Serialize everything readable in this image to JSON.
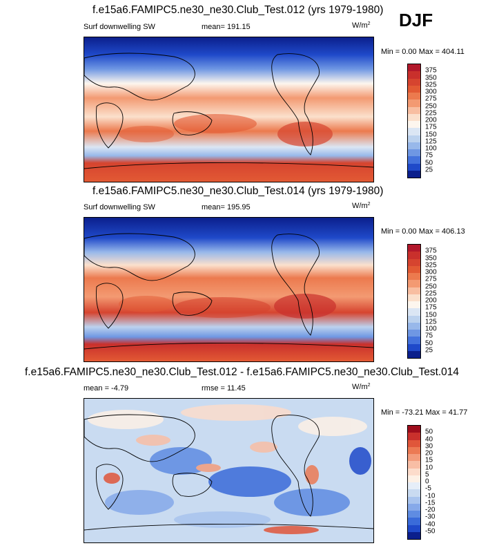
{
  "season": "DJF",
  "panels": [
    {
      "title": "f.e15a6.FAMIPC5.ne30_ne30.Club_Test.012 (yrs 1979-1980)",
      "variable": "Surf downwelling SW",
      "stat": "mean=  191.15",
      "unit": "W/m",
      "unit_exp": "2",
      "minmax": "Min =   0.00 Max = 404.11",
      "type": "field",
      "colorbar": {
        "labels": [
          "375",
          "350",
          "325",
          "300",
          "275",
          "250",
          "225",
          "200",
          "175",
          "150",
          "125",
          "100",
          "75",
          "50",
          "25"
        ]
      }
    },
    {
      "title": "f.e15a6.FAMIPC5.ne30_ne30.Club_Test.014 (yrs 1979-1980)",
      "variable": "Surf downwelling SW",
      "stat": "mean=  195.95",
      "unit": "W/m",
      "unit_exp": "2",
      "minmax": "Min =   0.00 Max = 406.13",
      "type": "field",
      "colorbar": {
        "labels": [
          "375",
          "350",
          "325",
          "300",
          "275",
          "250",
          "225",
          "200",
          "175",
          "150",
          "125",
          "100",
          "75",
          "50",
          "25"
        ]
      }
    },
    {
      "title": "f.e15a6.FAMIPC5.ne30_ne30.Club_Test.012 - f.e15a6.FAMIPC5.ne30_ne30.Club_Test.014",
      "variable": "mean =   -4.79",
      "stat": "rmse =  11.45",
      "unit": "W/m",
      "unit_exp": "2",
      "minmax": "Min = -73.21 Max =  41.77",
      "type": "diff",
      "colorbar": {
        "labels": [
          "50",
          "40",
          "30",
          "20",
          "15",
          "10",
          "5",
          "0",
          "-5",
          "-10",
          "-15",
          "-20",
          "-30",
          "-40",
          "-50"
        ]
      }
    }
  ],
  "colors": {
    "field": [
      "#b2182b",
      "#c9302c",
      "#d6442f",
      "#e25a34",
      "#ec7a4e",
      "#f39a72",
      "#f8bea1",
      "#fbe0cc",
      "#fdf6ee",
      "#dbe6f4",
      "#bcd2ee",
      "#98b8ea",
      "#6f97e3",
      "#4472dc",
      "#1f49c9",
      "#0b1f8c"
    ],
    "diff": [
      "#9e0d1c",
      "#c9302c",
      "#e0563a",
      "#ec7a54",
      "#f39c7c",
      "#f8bea5",
      "#fcdccb",
      "#fdf1e6",
      "#e6eef8",
      "#c9dbf1",
      "#a9c4ee",
      "#86a9e9",
      "#5f8ce2",
      "#3a6bd9",
      "#1f49c9",
      "#0b1f8c"
    ]
  }
}
